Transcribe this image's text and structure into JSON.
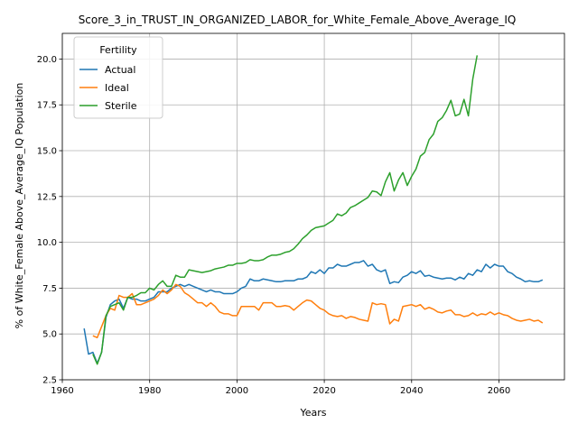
{
  "chart_data": {
    "type": "line",
    "title": "Score_3_in_TRUST_IN_ORGANIZED_LABOR_for_White_Female_Above_Average_IQ",
    "xlabel": "Years",
    "ylabel": "% of White_Female Above_Average_IQ Population",
    "xlim": [
      1960,
      2075
    ],
    "ylim": [
      2.5,
      21.4
    ],
    "xticks": [
      1960,
      1980,
      2000,
      2020,
      2040,
      2060
    ],
    "xtick_labels": [
      "1960",
      "1980",
      "2000",
      "2020",
      "2040",
      "2060"
    ],
    "yticks": [
      2.5,
      5.0,
      7.5,
      10.0,
      12.5,
      15.0,
      17.5,
      20.0
    ],
    "ytick_labels": [
      "2.5",
      "5.0",
      "7.5",
      "10.0",
      "12.5",
      "15.0",
      "17.5",
      "20.0"
    ],
    "grid": true,
    "legend": {
      "title": "Fertility",
      "placement": "top-left"
    },
    "series": [
      {
        "name": "Actual",
        "color": "#1f77b4",
        "points": [
          [
            1965,
            5.3
          ],
          [
            1966,
            3.9
          ],
          [
            1967,
            4.0
          ],
          [
            1968,
            3.4
          ],
          [
            1969,
            4.0
          ],
          [
            1970,
            5.9
          ],
          [
            1971,
            6.6
          ],
          [
            1972,
            6.8
          ],
          [
            1973,
            6.9
          ],
          [
            1974,
            6.4
          ],
          [
            1975,
            7.0
          ],
          [
            1976,
            6.9
          ],
          [
            1977,
            6.9
          ],
          [
            1978,
            6.8
          ],
          [
            1979,
            6.8
          ],
          [
            1980,
            6.9
          ],
          [
            1981,
            7.0
          ],
          [
            1982,
            7.3
          ],
          [
            1983,
            7.3
          ],
          [
            1984,
            7.3
          ],
          [
            1985,
            7.5
          ],
          [
            1986,
            7.6
          ],
          [
            1987,
            7.7
          ],
          [
            1988,
            7.6
          ],
          [
            1989,
            7.7
          ],
          [
            1990,
            7.6
          ],
          [
            1991,
            7.5
          ],
          [
            1992,
            7.4
          ],
          [
            1993,
            7.3
          ],
          [
            1994,
            7.4
          ],
          [
            1995,
            7.3
          ],
          [
            1996,
            7.3
          ],
          [
            1997,
            7.2
          ],
          [
            1998,
            7.2
          ],
          [
            1999,
            7.2
          ],
          [
            2000,
            7.3
          ],
          [
            2001,
            7.5
          ],
          [
            2002,
            7.6
          ],
          [
            2003,
            8.0
          ],
          [
            2004,
            7.9
          ],
          [
            2005,
            7.9
          ],
          [
            2006,
            8.0
          ],
          [
            2007,
            7.95
          ],
          [
            2008,
            7.9
          ],
          [
            2009,
            7.85
          ],
          [
            2010,
            7.85
          ],
          [
            2011,
            7.9
          ],
          [
            2012,
            7.9
          ],
          [
            2013,
            7.9
          ],
          [
            2014,
            8.0
          ],
          [
            2015,
            8.0
          ],
          [
            2016,
            8.1
          ],
          [
            2017,
            8.4
          ],
          [
            2018,
            8.3
          ],
          [
            2019,
            8.5
          ],
          [
            2020,
            8.3
          ],
          [
            2021,
            8.6
          ],
          [
            2022,
            8.6
          ],
          [
            2023,
            8.8
          ],
          [
            2024,
            8.7
          ],
          [
            2025,
            8.7
          ],
          [
            2026,
            8.8
          ],
          [
            2027,
            8.9
          ],
          [
            2028,
            8.9
          ],
          [
            2029,
            9.0
          ],
          [
            2030,
            8.7
          ],
          [
            2031,
            8.8
          ],
          [
            2032,
            8.5
          ],
          [
            2033,
            8.4
          ],
          [
            2034,
            8.5
          ],
          [
            2035,
            7.75
          ],
          [
            2036,
            7.85
          ],
          [
            2037,
            7.8
          ],
          [
            2038,
            8.1
          ],
          [
            2039,
            8.2
          ],
          [
            2040,
            8.4
          ],
          [
            2041,
            8.3
          ],
          [
            2042,
            8.45
          ],
          [
            2043,
            8.15
          ],
          [
            2044,
            8.2
          ],
          [
            2045,
            8.1
          ],
          [
            2046,
            8.05
          ],
          [
            2047,
            8.0
          ],
          [
            2048,
            8.05
          ],
          [
            2049,
            8.05
          ],
          [
            2050,
            7.95
          ],
          [
            2051,
            8.1
          ],
          [
            2052,
            8.0
          ],
          [
            2053,
            8.3
          ],
          [
            2054,
            8.2
          ],
          [
            2055,
            8.5
          ],
          [
            2056,
            8.4
          ],
          [
            2057,
            8.8
          ],
          [
            2058,
            8.6
          ],
          [
            2059,
            8.8
          ],
          [
            2060,
            8.7
          ],
          [
            2061,
            8.7
          ],
          [
            2062,
            8.4
          ],
          [
            2063,
            8.3
          ],
          [
            2064,
            8.1
          ],
          [
            2065,
            8.0
          ],
          [
            2066,
            7.85
          ],
          [
            2067,
            7.9
          ],
          [
            2068,
            7.85
          ],
          [
            2069,
            7.85
          ],
          [
            2070,
            7.95
          ]
        ]
      },
      {
        "name": "Ideal",
        "color": "#ff7f0e",
        "points": [
          [
            1967,
            4.9
          ],
          [
            1968,
            4.8
          ],
          [
            1969,
            5.4
          ],
          [
            1970,
            6.0
          ],
          [
            1971,
            6.4
          ],
          [
            1972,
            6.3
          ],
          [
            1973,
            7.1
          ],
          [
            1974,
            7.0
          ],
          [
            1975,
            7.0
          ],
          [
            1976,
            7.2
          ],
          [
            1977,
            6.6
          ],
          [
            1978,
            6.6
          ],
          [
            1979,
            6.7
          ],
          [
            1980,
            6.8
          ],
          [
            1981,
            6.9
          ],
          [
            1982,
            7.1
          ],
          [
            1983,
            7.4
          ],
          [
            1984,
            7.2
          ],
          [
            1985,
            7.4
          ],
          [
            1986,
            7.7
          ],
          [
            1987,
            7.6
          ],
          [
            1988,
            7.25
          ],
          [
            1989,
            7.1
          ],
          [
            1990,
            6.9
          ],
          [
            1991,
            6.7
          ],
          [
            1992,
            6.7
          ],
          [
            1993,
            6.5
          ],
          [
            1994,
            6.7
          ],
          [
            1995,
            6.5
          ],
          [
            1996,
            6.2
          ],
          [
            1997,
            6.1
          ],
          [
            1998,
            6.1
          ],
          [
            1999,
            6.0
          ],
          [
            2000,
            6.0
          ],
          [
            2001,
            6.5
          ],
          [
            2002,
            6.5
          ],
          [
            2003,
            6.5
          ],
          [
            2004,
            6.5
          ],
          [
            2005,
            6.3
          ],
          [
            2006,
            6.7
          ],
          [
            2007,
            6.7
          ],
          [
            2008,
            6.7
          ],
          [
            2009,
            6.5
          ],
          [
            2010,
            6.5
          ],
          [
            2011,
            6.55
          ],
          [
            2012,
            6.5
          ],
          [
            2013,
            6.3
          ],
          [
            2014,
            6.5
          ],
          [
            2015,
            6.7
          ],
          [
            2016,
            6.85
          ],
          [
            2017,
            6.8
          ],
          [
            2018,
            6.6
          ],
          [
            2019,
            6.4
          ],
          [
            2020,
            6.3
          ],
          [
            2021,
            6.1
          ],
          [
            2022,
            6.0
          ],
          [
            2023,
            5.95
          ],
          [
            2024,
            6.0
          ],
          [
            2025,
            5.85
          ],
          [
            2026,
            5.95
          ],
          [
            2027,
            5.9
          ],
          [
            2028,
            5.8
          ],
          [
            2029,
            5.75
          ],
          [
            2030,
            5.7
          ],
          [
            2031,
            6.7
          ],
          [
            2032,
            6.6
          ],
          [
            2033,
            6.65
          ],
          [
            2034,
            6.6
          ],
          [
            2035,
            5.55
          ],
          [
            2036,
            5.8
          ],
          [
            2037,
            5.7
          ],
          [
            2038,
            6.5
          ],
          [
            2039,
            6.55
          ],
          [
            2040,
            6.6
          ],
          [
            2041,
            6.5
          ],
          [
            2042,
            6.6
          ],
          [
            2043,
            6.35
          ],
          [
            2044,
            6.45
          ],
          [
            2045,
            6.35
          ],
          [
            2046,
            6.2
          ],
          [
            2047,
            6.15
          ],
          [
            2048,
            6.25
          ],
          [
            2049,
            6.3
          ],
          [
            2050,
            6.05
          ],
          [
            2051,
            6.05
          ],
          [
            2052,
            5.95
          ],
          [
            2053,
            6.0
          ],
          [
            2054,
            6.15
          ],
          [
            2055,
            6.0
          ],
          [
            2056,
            6.1
          ],
          [
            2057,
            6.05
          ],
          [
            2058,
            6.2
          ],
          [
            2059,
            6.05
          ],
          [
            2060,
            6.15
          ],
          [
            2061,
            6.05
          ],
          [
            2062,
            6.0
          ],
          [
            2063,
            5.85
          ],
          [
            2064,
            5.75
          ],
          [
            2065,
            5.7
          ],
          [
            2066,
            5.75
          ],
          [
            2067,
            5.8
          ],
          [
            2068,
            5.7
          ],
          [
            2069,
            5.75
          ],
          [
            2070,
            5.6
          ]
        ]
      },
      {
        "name": "Sterile",
        "color": "#2ca02c",
        "points": [
          [
            1967,
            3.9
          ],
          [
            1968,
            3.35
          ],
          [
            1969,
            4.0
          ],
          [
            1970,
            6.0
          ],
          [
            1971,
            6.5
          ],
          [
            1972,
            6.6
          ],
          [
            1973,
            6.7
          ],
          [
            1974,
            6.3
          ],
          [
            1975,
            7.0
          ],
          [
            1976,
            7.0
          ],
          [
            1977,
            7.1
          ],
          [
            1978,
            7.25
          ],
          [
            1979,
            7.25
          ],
          [
            1980,
            7.5
          ],
          [
            1981,
            7.4
          ],
          [
            1982,
            7.7
          ],
          [
            1983,
            7.9
          ],
          [
            1984,
            7.6
          ],
          [
            1985,
            7.6
          ],
          [
            1986,
            8.2
          ],
          [
            1987,
            8.1
          ],
          [
            1988,
            8.1
          ],
          [
            1989,
            8.5
          ],
          [
            1990,
            8.45
          ],
          [
            1991,
            8.4
          ],
          [
            1992,
            8.35
          ],
          [
            1993,
            8.4
          ],
          [
            1994,
            8.45
          ],
          [
            1995,
            8.55
          ],
          [
            1996,
            8.6
          ],
          [
            1997,
            8.65
          ],
          [
            1998,
            8.75
          ],
          [
            1999,
            8.75
          ],
          [
            2000,
            8.85
          ],
          [
            2001,
            8.85
          ],
          [
            2002,
            8.9
          ],
          [
            2003,
            9.05
          ],
          [
            2004,
            9.0
          ],
          [
            2005,
            9.0
          ],
          [
            2006,
            9.05
          ],
          [
            2007,
            9.2
          ],
          [
            2008,
            9.3
          ],
          [
            2009,
            9.3
          ],
          [
            2010,
            9.35
          ],
          [
            2011,
            9.45
          ],
          [
            2012,
            9.5
          ],
          [
            2013,
            9.65
          ],
          [
            2014,
            9.9
          ],
          [
            2015,
            10.2
          ],
          [
            2016,
            10.4
          ],
          [
            2017,
            10.65
          ],
          [
            2018,
            10.8
          ],
          [
            2019,
            10.85
          ],
          [
            2020,
            10.9
          ],
          [
            2021,
            11.05
          ],
          [
            2022,
            11.2
          ],
          [
            2023,
            11.55
          ],
          [
            2024,
            11.45
          ],
          [
            2025,
            11.6
          ],
          [
            2026,
            11.9
          ],
          [
            2027,
            12.0
          ],
          [
            2028,
            12.15
          ],
          [
            2029,
            12.3
          ],
          [
            2030,
            12.45
          ],
          [
            2031,
            12.8
          ],
          [
            2032,
            12.75
          ],
          [
            2033,
            12.55
          ],
          [
            2034,
            13.3
          ],
          [
            2035,
            13.8
          ],
          [
            2036,
            12.8
          ],
          [
            2037,
            13.4
          ],
          [
            2038,
            13.8
          ],
          [
            2039,
            13.1
          ],
          [
            2040,
            13.6
          ],
          [
            2041,
            14.0
          ],
          [
            2042,
            14.7
          ],
          [
            2043,
            14.9
          ],
          [
            2044,
            15.6
          ],
          [
            2045,
            15.9
          ],
          [
            2046,
            16.6
          ],
          [
            2047,
            16.8
          ],
          [
            2048,
            17.2
          ],
          [
            2049,
            17.75
          ],
          [
            2050,
            16.9
          ],
          [
            2051,
            17.0
          ],
          [
            2052,
            17.8
          ],
          [
            2053,
            16.9
          ],
          [
            2054,
            18.9
          ],
          [
            2055,
            20.2
          ]
        ]
      }
    ]
  }
}
